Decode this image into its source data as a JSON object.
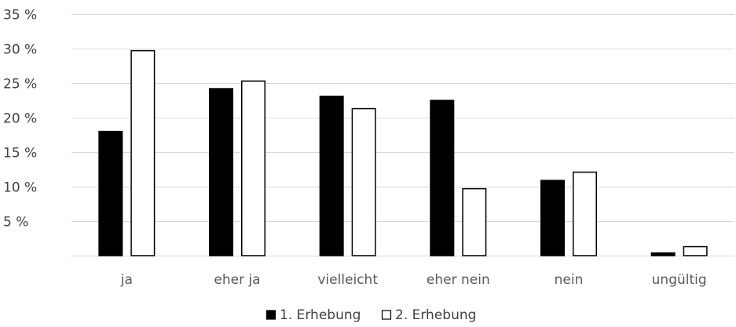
{
  "chart_data": {
    "type": "bar",
    "title": "",
    "xlabel": "",
    "ylabel": "",
    "ylim": [
      0,
      35
    ],
    "yticks": [
      5,
      10,
      15,
      20,
      25,
      30,
      35
    ],
    "ytick_labels": [
      "5 %",
      "10 %",
      "15 %",
      "20 %",
      "25 %",
      "30 %",
      "35 %"
    ],
    "grid": true,
    "legend_position": "bottom",
    "categories": [
      "ja",
      "eher ja",
      "vielleicht",
      "eher nein",
      "nein",
      "ungültig"
    ],
    "series": [
      {
        "name": "1. Erhebung",
        "values": [
          18,
          24.2,
          23.1,
          22.5,
          10.9,
          0.4
        ],
        "fill": "#000000",
        "stroke": "#000000"
      },
      {
        "name": "2. Erhebung",
        "values": [
          29.7,
          25.3,
          21.3,
          9.7,
          12.1,
          1.3
        ],
        "fill": "#ffffff",
        "stroke": "#000000"
      }
    ]
  }
}
